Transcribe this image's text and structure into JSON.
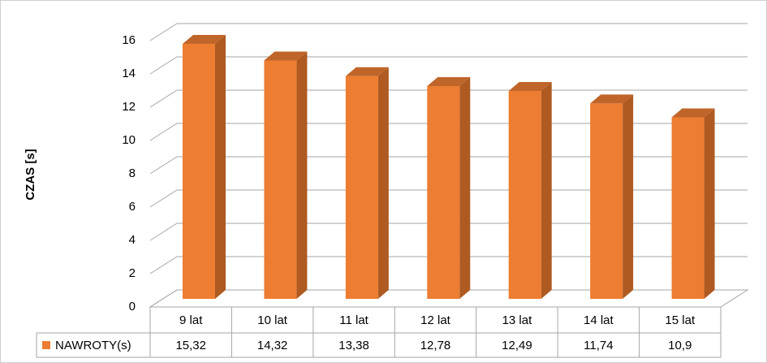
{
  "chart_data": {
    "type": "bar3d",
    "y_label": "CZAS [s]",
    "categories": [
      "9 lat",
      "10 lat",
      "11 lat",
      "12 lat",
      "13 lat",
      "14 lat",
      "15 lat"
    ],
    "series": [
      {
        "name": "NAWROTY(s)",
        "color": "#ed7d31",
        "values": [
          15.32,
          14.32,
          13.38,
          12.78,
          12.49,
          11.74,
          10.9
        ],
        "value_labels": [
          "15,32",
          "14,32",
          "13,38",
          "12,78",
          "12,49",
          "11,74",
          "10,9"
        ]
      }
    ],
    "ylim": [
      0,
      16
    ],
    "yticks": [
      0,
      2,
      4,
      6,
      8,
      10,
      12,
      14,
      16
    ],
    "grid": true
  }
}
